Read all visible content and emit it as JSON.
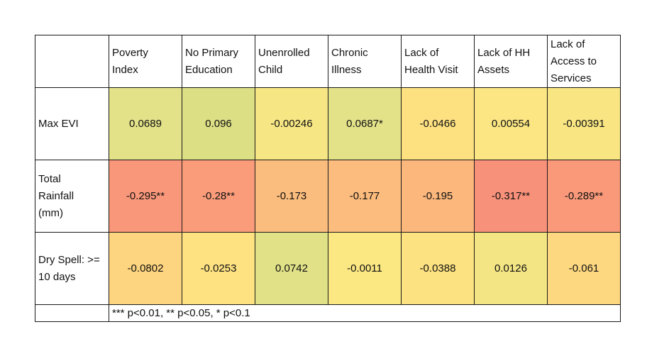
{
  "chart_data": {
    "type": "heatmap",
    "columns": [
      "Poverty\nIndex",
      "No Primary\nEducation",
      "Unenrolled\nChild",
      "Chronic\nIllness",
      "Lack of\nHealth Visit",
      "Lack of HH\nAssets",
      "Lack of\nAccess to\nServices"
    ],
    "rows": [
      {
        "label": "Max EVI",
        "values": [
          0.0689,
          0.096,
          -0.00246,
          0.0687,
          -0.0466,
          0.00554,
          -0.00391
        ],
        "labels": [
          "0.0689",
          "0.096",
          "-0.00246",
          "0.0687*",
          "-0.0466",
          "0.00554",
          "-0.00391"
        ],
        "colors": [
          "#e3e289",
          "#dcdf84",
          "#f7e784",
          "#e3e289",
          "#fde181",
          "#fbe683",
          "#f9e683"
        ]
      },
      {
        "label": "Total\nRainfall\n(mm)",
        "values": [
          -0.295,
          -0.28,
          -0.173,
          -0.177,
          -0.195,
          -0.317,
          -0.289
        ],
        "labels": [
          "-0.295**",
          "-0.28**",
          "-0.173",
          "-0.177",
          "-0.195",
          "-0.317**",
          "-0.289**"
        ],
        "colors": [
          "#f9977a",
          "#fa9c7a",
          "#fbbd7d",
          "#fbbc7d",
          "#fbb77c",
          "#f8917a",
          "#f9997a"
        ]
      },
      {
        "label": "Dry Spell: >=\n10 days",
        "values": [
          -0.0802,
          -0.0253,
          0.0742,
          -0.0011,
          -0.0388,
          0.0126,
          -0.061
        ],
        "labels": [
          "-0.0802",
          "-0.0253",
          "0.0742",
          "-0.0011",
          "-0.0388",
          "0.0126",
          "-0.061"
        ],
        "colors": [
          "#fdd47f",
          "#fee282",
          "#e1e188",
          "#fbe883",
          "#fde281",
          "#f4e584",
          "#fdd880"
        ]
      }
    ],
    "note": "*** p<0.01, ** p<0.05, * p<0.1"
  }
}
